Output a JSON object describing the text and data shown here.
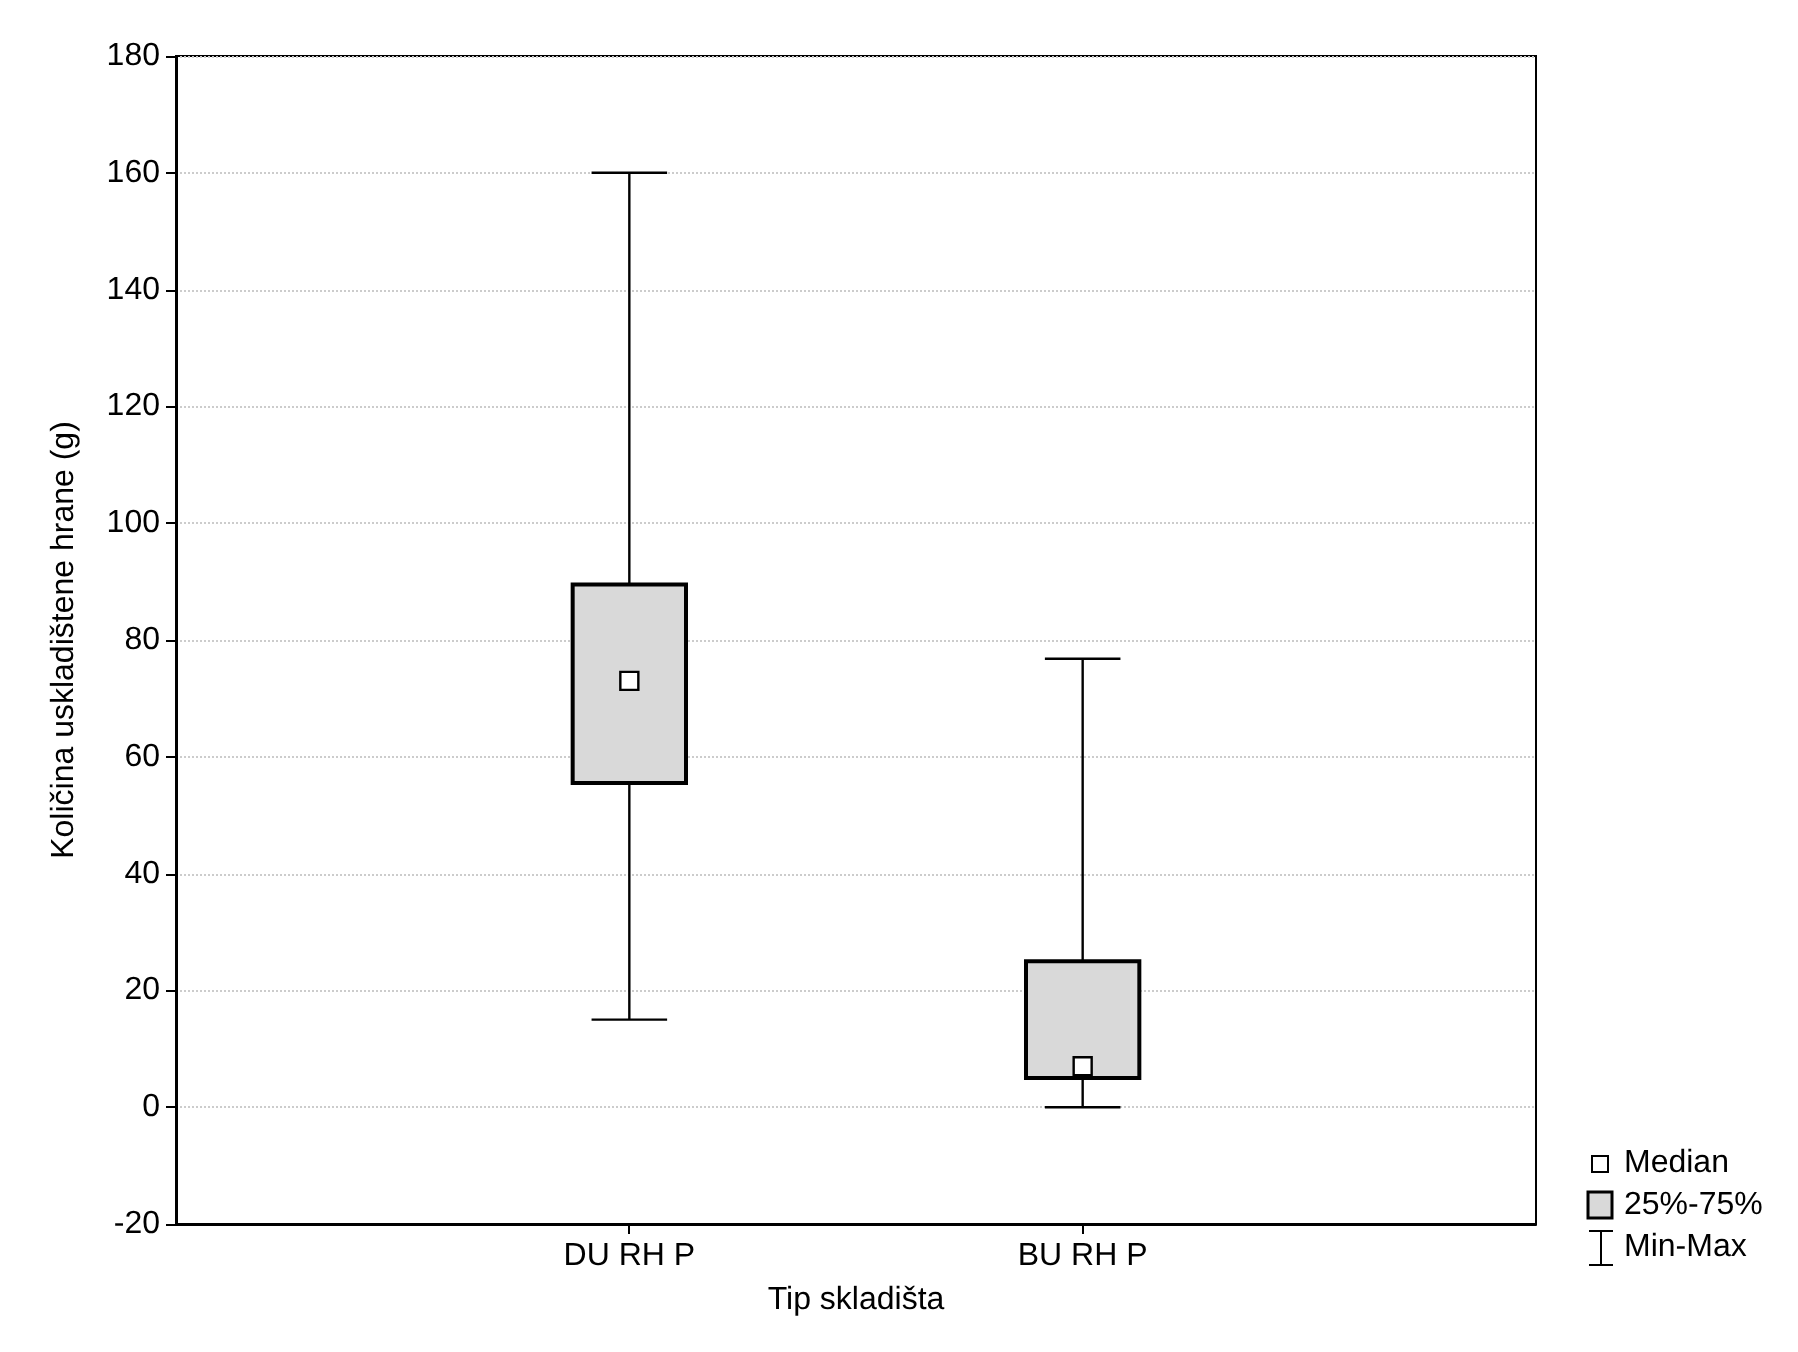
{
  "chart_data": {
    "type": "box",
    "xlabel": "Tip skladišta",
    "ylabel": "Količina uskladištene hrane (g)",
    "categories": [
      "DU RH P",
      "BU RH P"
    ],
    "series": [
      {
        "name": "25%-75%",
        "color": "#d9d9d9",
        "boxes": [
          {
            "low": 15,
            "q1": 55.5,
            "median": 73,
            "q3": 89.5,
            "high": 160
          },
          {
            "low": 0,
            "q1": 5,
            "median": 7,
            "q3": 25,
            "high": 76.8
          }
        ]
      }
    ],
    "annotations": [
      "Median",
      "Min-Max"
    ],
    "ylim": [
      -20,
      180
    ],
    "yticks": [
      -20,
      0,
      20,
      40,
      60,
      80,
      100,
      120,
      140,
      160,
      180
    ],
    "grid": "y",
    "legend": "bottom right"
  }
}
